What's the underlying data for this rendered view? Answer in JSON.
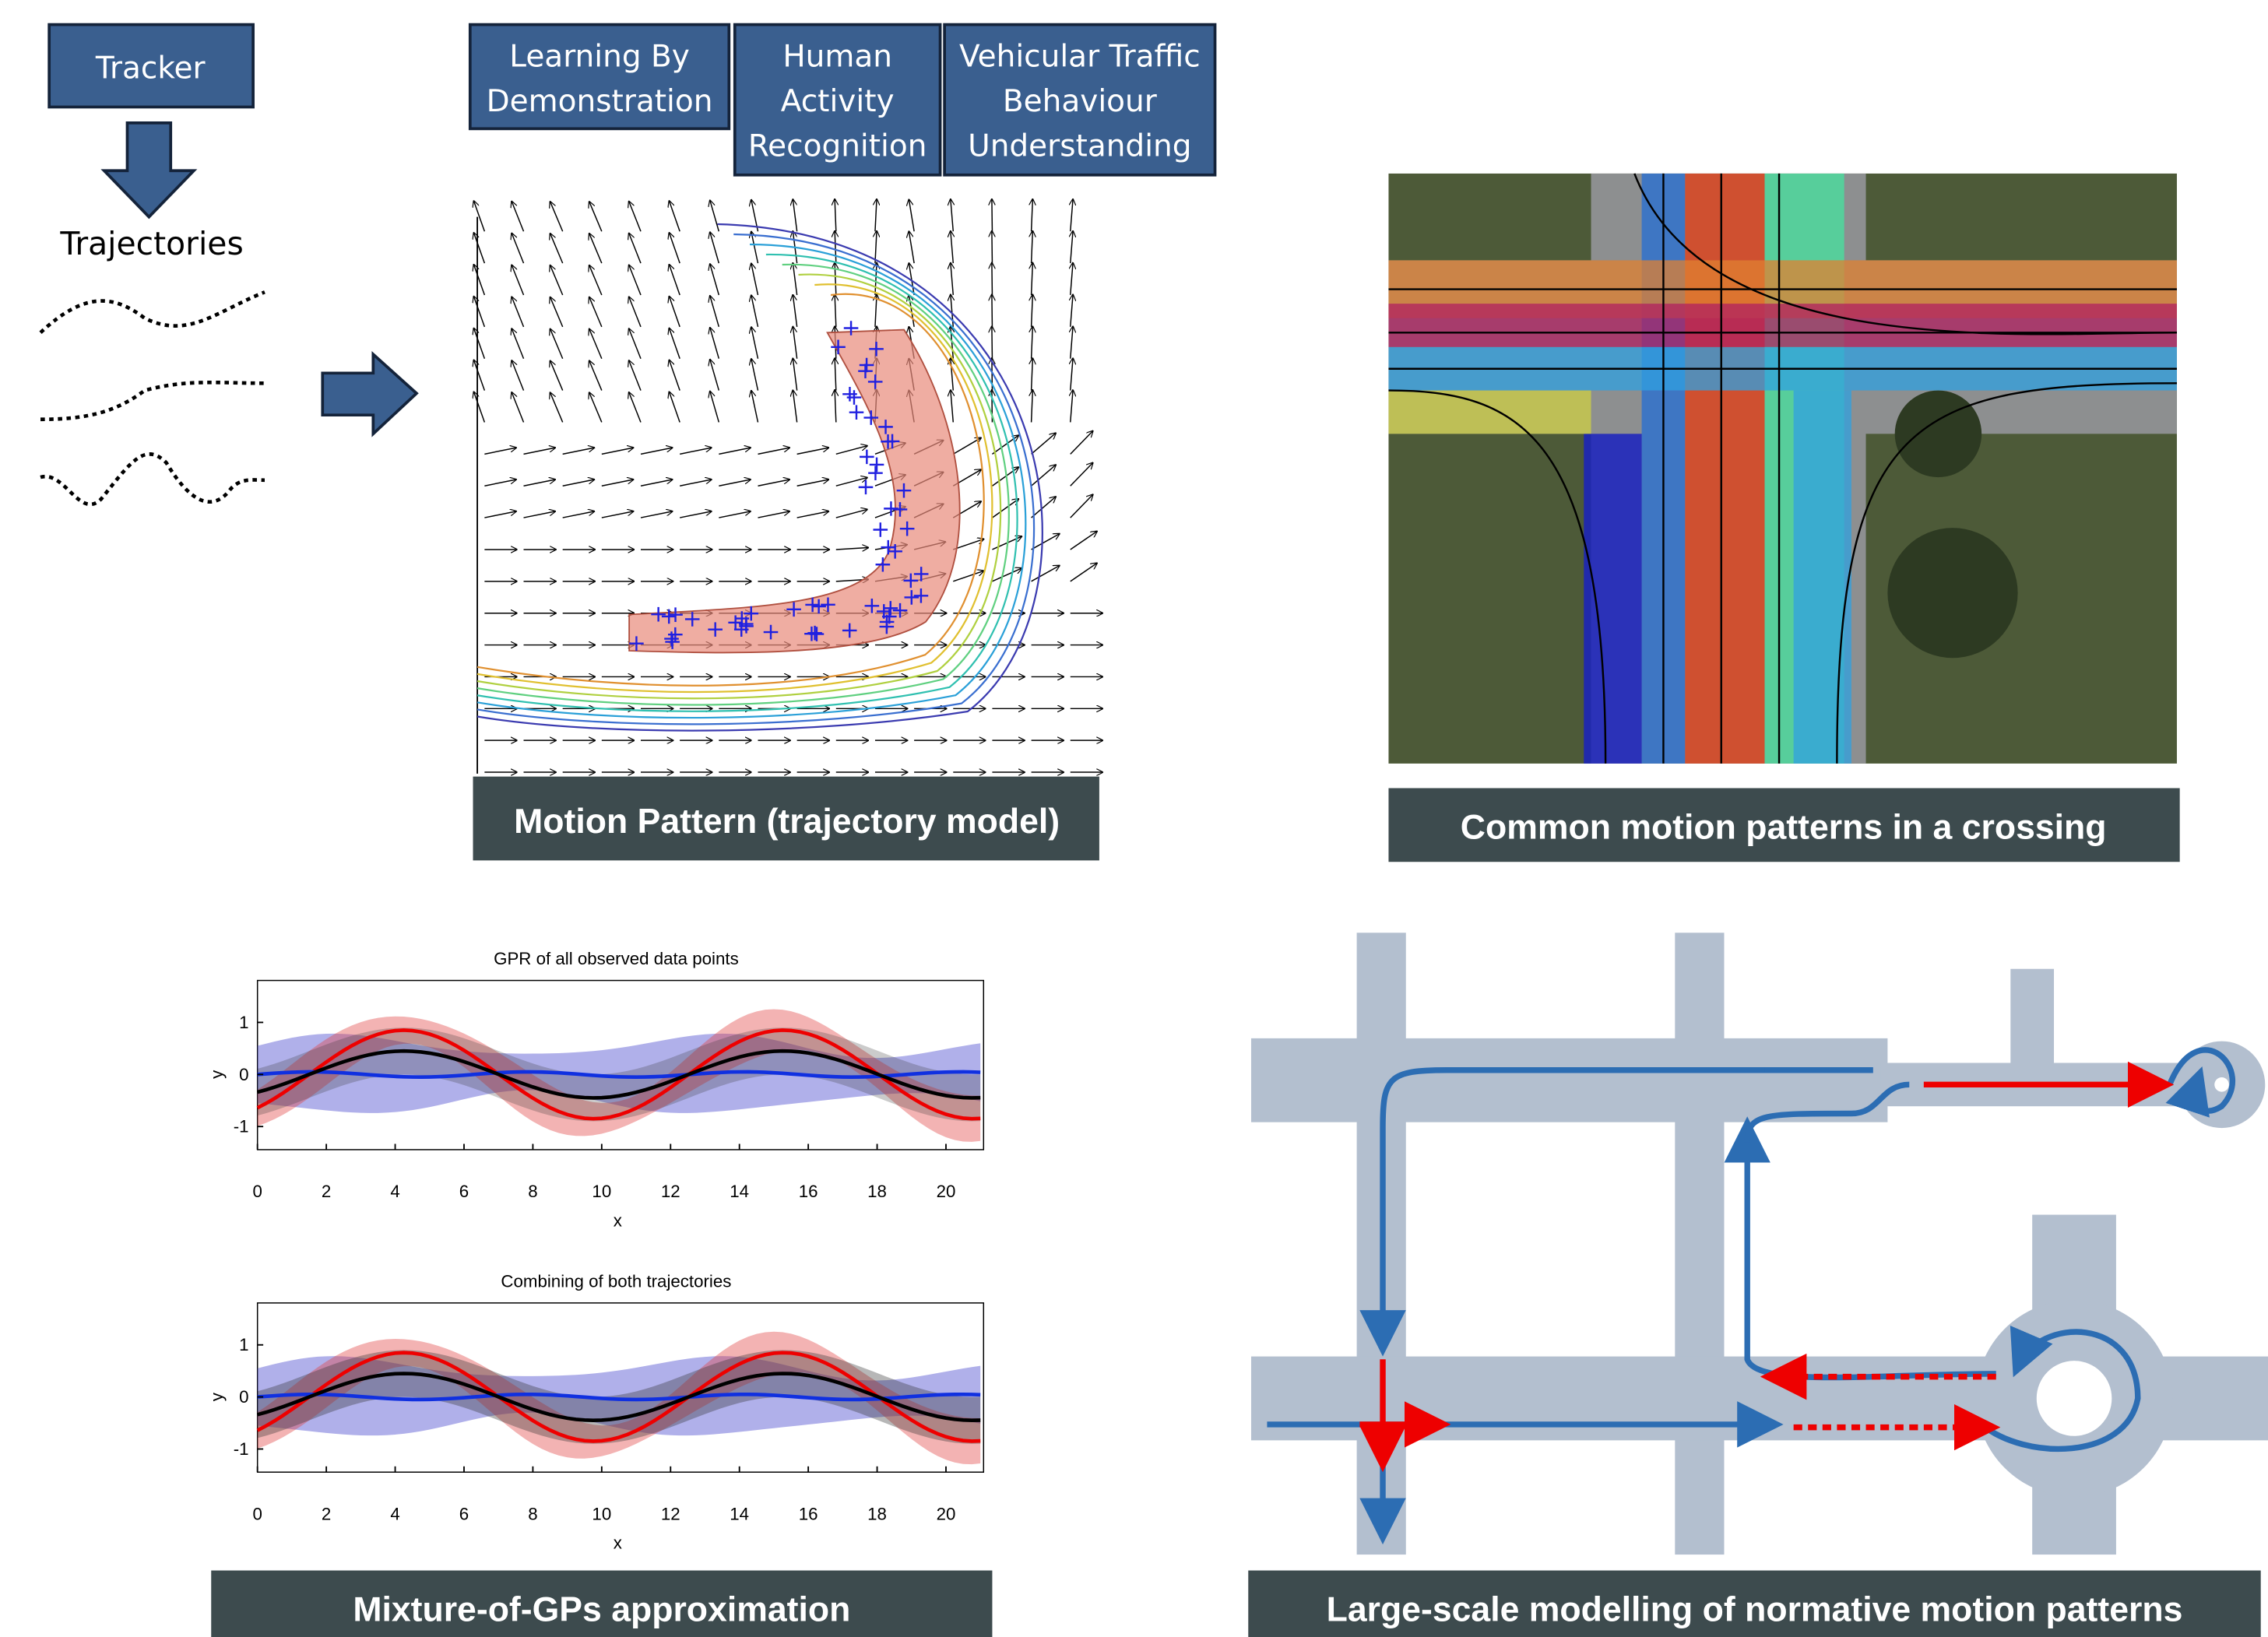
{
  "pipeline": {
    "tracker": "Tracker",
    "trajectories": "Trajectories",
    "applications": [
      [
        "Learning By",
        "Demonstration"
      ],
      [
        "Human",
        "Activity",
        "Recognition"
      ],
      [
        "Vehicular Traffic",
        "Behaviour",
        "Understanding"
      ]
    ]
  },
  "panels": [
    {
      "caption": "Motion Pattern (trajectory model)"
    },
    {
      "caption": "Common motion patterns in a crossing"
    },
    {
      "caption": "Mixture-of-GPs approximation"
    },
    {
      "caption": "Large-scale modelling of normative motion patterns"
    }
  ],
  "plots": [
    {
      "title": "GPR of all observed data points",
      "x_label": "x",
      "y_label": "y",
      "xticks": [
        "0",
        "2",
        "4",
        "6",
        "8",
        "10",
        "12",
        "14",
        "16",
        "18",
        "20"
      ],
      "yticks": [
        "1",
        "0",
        "-1"
      ]
    },
    {
      "title": "Combining of both trajectories",
      "x_label": "x",
      "y_label": "y",
      "xticks": [
        "0",
        "2",
        "4",
        "6",
        "8",
        "10",
        "12",
        "14",
        "16",
        "18",
        "20"
      ],
      "yticks": [
        "1",
        "0",
        "-1"
      ]
    }
  ]
}
